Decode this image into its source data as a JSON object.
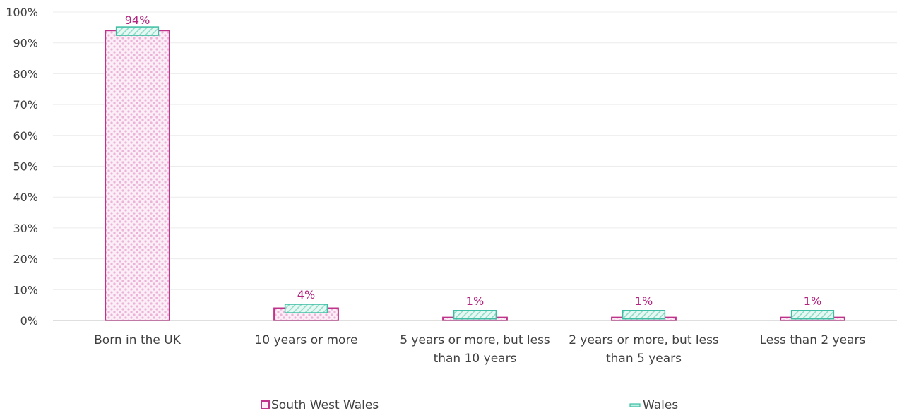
{
  "chart_data": {
    "type": "bar",
    "categories": [
      "Born in the UK",
      "10 years or more",
      "5 years or more, but less than 10 years",
      "2 years or more, but less than 5 years",
      "Less than 2 years"
    ],
    "category_lines": [
      [
        "Born in the UK"
      ],
      [
        "10 years or more"
      ],
      [
        "5 years or more, but less",
        "than 10 years"
      ],
      [
        "2 years or more, but less",
        "than 5 years"
      ],
      [
        "Less than 2 years"
      ]
    ],
    "series": [
      {
        "name": "South West Wales",
        "values": [
          94,
          4,
          1,
          1,
          1
        ],
        "color": "#c0338a",
        "fill": "#f3c9e6"
      },
      {
        "name": "Wales",
        "values": [
          93,
          4,
          2,
          2,
          2
        ],
        "color": "#3dbea3",
        "fill": "#bfeee2"
      }
    ],
    "data_labels": [
      "94%",
      "4%",
      "1%",
      "1%",
      "1%"
    ],
    "ylim": [
      0,
      100
    ],
    "yticks": [
      "0%",
      "10%",
      "20%",
      "30%",
      "40%",
      "50%",
      "60%",
      "70%",
      "80%",
      "90%",
      "100%"
    ],
    "grid": true,
    "legend": "bottom"
  }
}
